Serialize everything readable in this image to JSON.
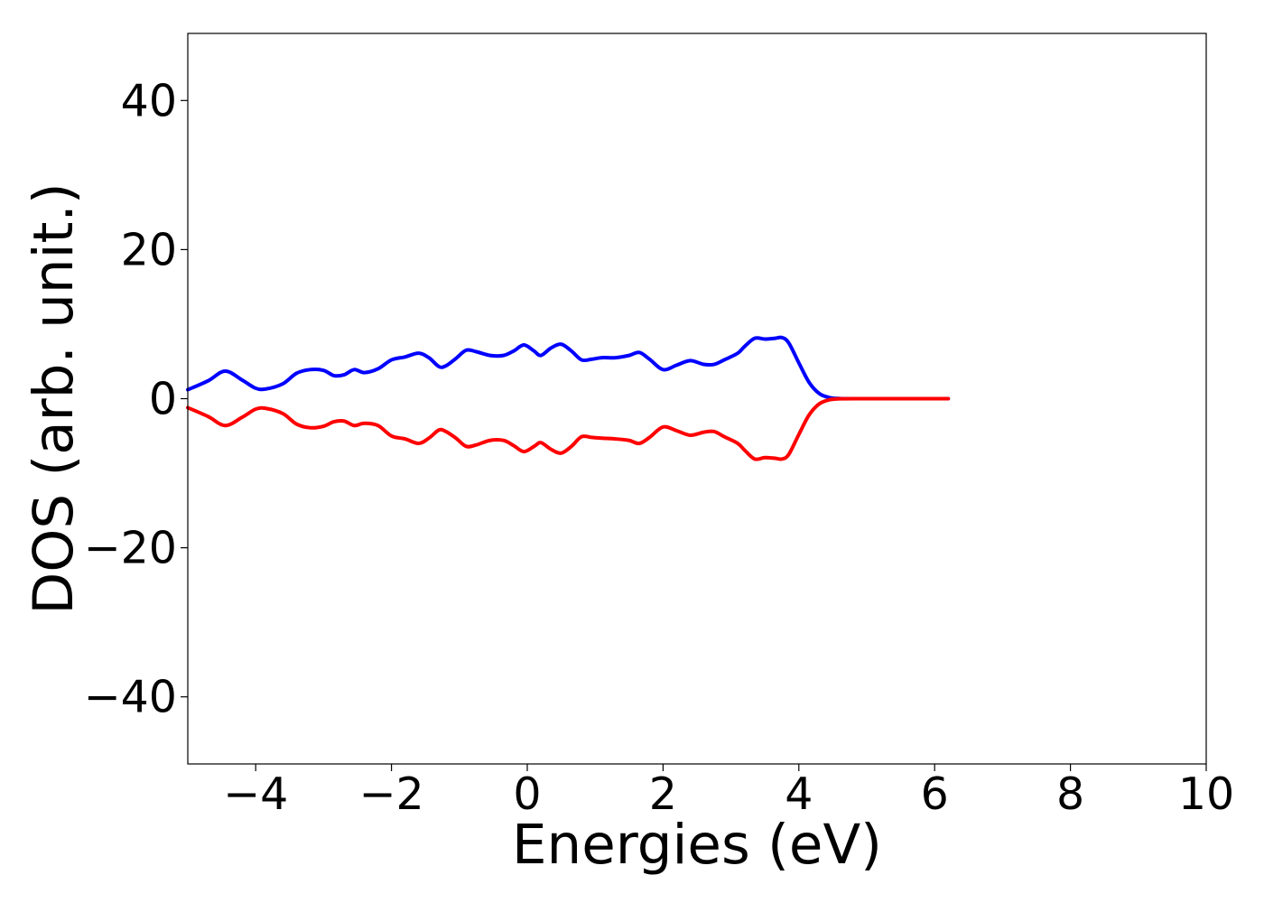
{
  "chart_data": {
    "type": "line",
    "xlabel": "Energies (eV)",
    "ylabel": "DOS (arb. unit.)",
    "xlim": [
      -5,
      10
    ],
    "ylim": [
      -49,
      49
    ],
    "x_ticks": [
      -4,
      -2,
      0,
      2,
      4,
      6,
      8,
      10
    ],
    "y_ticks": [
      -40,
      -20,
      0,
      20,
      40
    ],
    "x_tick_labels": [
      "−4",
      "−2",
      "0",
      "2",
      "4",
      "6",
      "8",
      "10"
    ],
    "y_tick_labels": [
      "−40",
      "−20",
      "0",
      "20",
      "40"
    ],
    "grid": false,
    "series": [
      {
        "color": "#0000ff",
        "x": [
          -5.0,
          -4.7,
          -4.45,
          -4.2,
          -4.0,
          -3.85,
          -3.6,
          -3.4,
          -3.2,
          -3.0,
          -2.85,
          -2.7,
          -2.55,
          -2.4,
          -2.2,
          -2.0,
          -1.8,
          -1.6,
          -1.45,
          -1.3,
          -1.2,
          -1.05,
          -0.9,
          -0.75,
          -0.55,
          -0.35,
          -0.2,
          -0.05,
          0.1,
          0.2,
          0.35,
          0.5,
          0.65,
          0.8,
          0.95,
          1.1,
          1.3,
          1.5,
          1.65,
          1.8,
          2.0,
          2.2,
          2.4,
          2.6,
          2.75,
          2.9,
          3.1,
          3.2,
          3.35,
          3.5,
          3.65,
          3.75,
          3.85,
          4.0,
          4.15,
          4.3,
          4.45,
          4.6,
          5.0,
          6.2
        ],
        "y": [
          1.2,
          2.4,
          3.7,
          2.5,
          1.4,
          1.3,
          2.0,
          3.4,
          3.9,
          3.8,
          3.1,
          3.2,
          3.9,
          3.5,
          4.0,
          5.2,
          5.6,
          6.1,
          5.5,
          4.3,
          4.4,
          5.4,
          6.5,
          6.3,
          5.8,
          5.8,
          6.4,
          7.2,
          6.4,
          5.8,
          6.8,
          7.3,
          6.4,
          5.2,
          5.3,
          5.5,
          5.5,
          5.8,
          6.2,
          5.3,
          3.9,
          4.5,
          5.1,
          4.6,
          4.6,
          5.2,
          6.1,
          7.0,
          8.1,
          8.0,
          8.1,
          8.2,
          7.5,
          4.8,
          2.2,
          0.7,
          0.15,
          0.02,
          0.0,
          0.0
        ]
      },
      {
        "color": "#ff0000",
        "x": [
          -5.0,
          -4.7,
          -4.45,
          -4.2,
          -4.0,
          -3.85,
          -3.6,
          -3.4,
          -3.2,
          -3.0,
          -2.85,
          -2.7,
          -2.55,
          -2.4,
          -2.2,
          -2.0,
          -1.8,
          -1.6,
          -1.45,
          -1.3,
          -1.2,
          -1.05,
          -0.9,
          -0.75,
          -0.55,
          -0.35,
          -0.2,
          -0.05,
          0.1,
          0.2,
          0.35,
          0.5,
          0.65,
          0.8,
          0.95,
          1.1,
          1.3,
          1.5,
          1.65,
          1.8,
          2.0,
          2.2,
          2.4,
          2.6,
          2.75,
          2.9,
          3.1,
          3.2,
          3.35,
          3.5,
          3.65,
          3.75,
          3.85,
          4.0,
          4.15,
          4.3,
          4.45,
          4.6,
          5.0,
          6.2
        ],
        "y": [
          -1.2,
          -2.4,
          -3.6,
          -2.5,
          -1.4,
          -1.3,
          -2.0,
          -3.4,
          -3.9,
          -3.7,
          -3.1,
          -3.0,
          -3.6,
          -3.3,
          -3.6,
          -5.0,
          -5.4,
          -6.0,
          -5.3,
          -4.2,
          -4.4,
          -5.3,
          -6.4,
          -6.2,
          -5.6,
          -5.6,
          -6.3,
          -7.1,
          -6.4,
          -5.9,
          -6.8,
          -7.3,
          -6.4,
          -5.1,
          -5.2,
          -5.3,
          -5.4,
          -5.6,
          -6.0,
          -5.2,
          -3.8,
          -4.3,
          -4.9,
          -4.5,
          -4.4,
          -5.1,
          -6.0,
          -6.9,
          -8.1,
          -7.9,
          -8.0,
          -8.1,
          -7.5,
          -4.8,
          -2.2,
          -0.7,
          -0.15,
          -0.02,
          0.0,
          0.0
        ]
      }
    ]
  }
}
